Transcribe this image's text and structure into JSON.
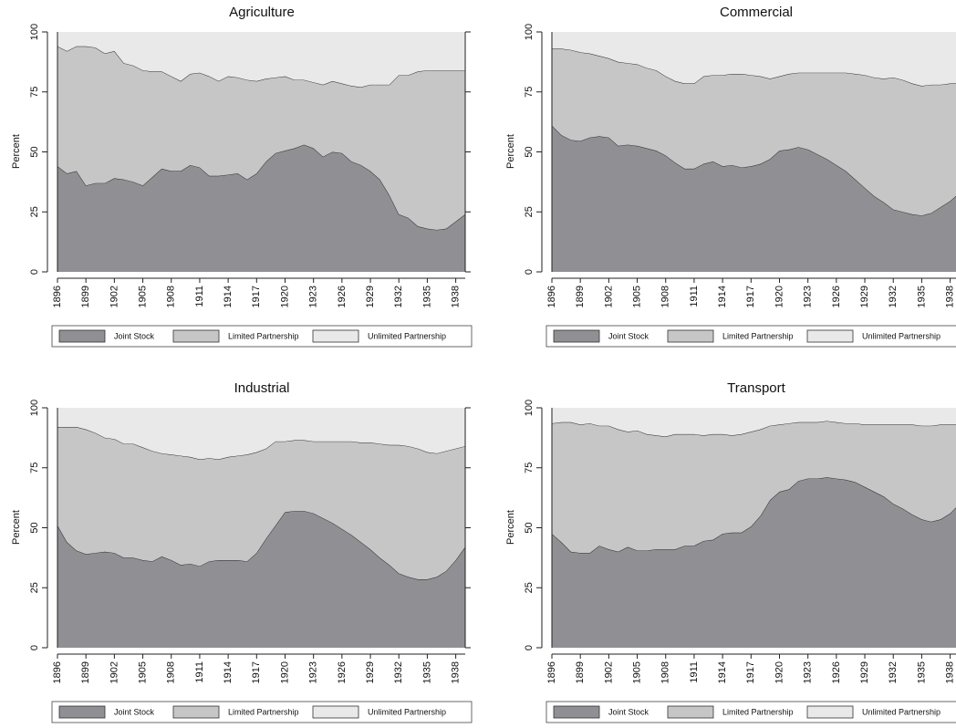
{
  "chart_data": [
    {
      "type": "area",
      "stacked": true,
      "title": "Agriculture",
      "ylabel": "Percent",
      "x": [
        1896,
        1897,
        1898,
        1899,
        1900,
        1901,
        1902,
        1903,
        1904,
        1905,
        1906,
        1907,
        1908,
        1909,
        1910,
        1911,
        1912,
        1913,
        1914,
        1915,
        1916,
        1917,
        1918,
        1919,
        1920,
        1921,
        1922,
        1923,
        1924,
        1925,
        1926,
        1927,
        1928,
        1929,
        1930,
        1931,
        1932,
        1933,
        1934,
        1935,
        1936,
        1937,
        1938,
        1939
      ],
      "xlim": [
        1896,
        1939
      ],
      "xticks": [
        1896,
        1899,
        1902,
        1905,
        1908,
        1911,
        1914,
        1917,
        1920,
        1923,
        1926,
        1929,
        1932,
        1935,
        1938
      ],
      "ylim": [
        0,
        100
      ],
      "yticks": [
        0,
        25,
        50,
        75,
        100
      ],
      "series": [
        {
          "name": "Joint Stock",
          "color": "#909094",
          "values": [
            44,
            41,
            42,
            36,
            37,
            37,
            39,
            38.5,
            37.5,
            36,
            39.5,
            43,
            42,
            42,
            44.5,
            43.5,
            40,
            40,
            40.5,
            41,
            38.5,
            41,
            46,
            49.5,
            50.5,
            51.5,
            53,
            51.5,
            48,
            50,
            49.5,
            46,
            44.5,
            42,
            38.5,
            32,
            24,
            22.5,
            19,
            18,
            17.5,
            18,
            21,
            24
          ]
        },
        {
          "name": "Limited Partnership",
          "color": "#c6c6c6",
          "values": [
            50,
            51,
            52,
            58,
            56.5,
            54,
            53,
            48.5,
            48.5,
            48,
            44,
            40.5,
            39.5,
            37.5,
            38,
            39.5,
            41.5,
            39.5,
            41,
            40,
            41.5,
            38.5,
            34.5,
            31.5,
            31,
            28.5,
            27,
            27.5,
            30,
            29.5,
            29,
            31.5,
            32.5,
            36,
            39.5,
            46,
            58,
            59.5,
            64.5,
            66,
            66.5,
            66,
            63,
            60
          ]
        },
        {
          "name": "Unlimited Partnership",
          "color": "#e9e9e9",
          "values": [
            6,
            8,
            6,
            6,
            6.5,
            9,
            8,
            13,
            14,
            16,
            16.5,
            16.5,
            18.5,
            20.5,
            17.5,
            17,
            18.5,
            20.5,
            18.5,
            19,
            20,
            20.5,
            19.5,
            19,
            18.5,
            20,
            20,
            21,
            22,
            20.5,
            21.5,
            22.5,
            23,
            22,
            22,
            22,
            18,
            18,
            16.5,
            16,
            16,
            16,
            16,
            16
          ]
        }
      ]
    },
    {
      "type": "area",
      "stacked": true,
      "title": "Commercial",
      "ylabel": "Percent",
      "x": [
        1896,
        1897,
        1898,
        1899,
        1900,
        1901,
        1902,
        1903,
        1904,
        1905,
        1906,
        1907,
        1908,
        1909,
        1910,
        1911,
        1912,
        1913,
        1914,
        1915,
        1916,
        1917,
        1918,
        1919,
        1920,
        1921,
        1922,
        1923,
        1924,
        1925,
        1926,
        1927,
        1928,
        1929,
        1930,
        1931,
        1932,
        1933,
        1934,
        1935,
        1936,
        1937,
        1938,
        1939
      ],
      "xlim": [
        1896,
        1939
      ],
      "xticks": [
        1896,
        1899,
        1902,
        1905,
        1908,
        1911,
        1914,
        1917,
        1920,
        1923,
        1926,
        1929,
        1932,
        1935,
        1938
      ],
      "ylim": [
        0,
        100
      ],
      "yticks": [
        0,
        25,
        50,
        75,
        100
      ],
      "series": [
        {
          "name": "Joint Stock",
          "color": "#909094",
          "values": [
            61,
            57,
            55,
            54.5,
            56,
            56.5,
            56,
            52.5,
            53,
            52.5,
            51.5,
            50.5,
            48.5,
            45.5,
            43,
            43,
            45,
            46,
            44,
            44.5,
            43.5,
            44,
            45,
            47,
            50.5,
            51,
            52,
            51,
            49,
            47,
            44.5,
            42,
            38.5,
            35,
            31.5,
            29,
            26,
            25,
            24,
            23.5,
            24.5,
            27,
            29.5,
            33
          ]
        },
        {
          "name": "Limited Partnership",
          "color": "#c6c6c6",
          "values": [
            32,
            36,
            37.5,
            37,
            35,
            33.5,
            33,
            35,
            34,
            34,
            33.5,
            33.5,
            33,
            34,
            35.5,
            35.5,
            36.5,
            36,
            38,
            38,
            39,
            38,
            36.5,
            33.5,
            31,
            31.5,
            31,
            32,
            34,
            36,
            38.5,
            41,
            44,
            47,
            49.5,
            51.5,
            55,
            55,
            54.5,
            54,
            53.5,
            51,
            49,
            45.5
          ]
        },
        {
          "name": "Unlimited Partnership",
          "color": "#e9e9e9",
          "values": [
            7,
            7,
            7.5,
            8.5,
            9,
            10,
            11,
            12.5,
            13,
            13.5,
            15,
            16,
            18.5,
            20.5,
            21.5,
            21.5,
            18.5,
            18,
            18,
            17.5,
            17.5,
            18,
            18.5,
            19.5,
            18.5,
            17.5,
            17,
            17,
            17,
            17,
            17,
            17,
            17.5,
            18,
            19,
            19.5,
            19,
            20,
            21.5,
            22.5,
            22,
            22,
            21.5,
            21.5
          ]
        }
      ]
    },
    {
      "type": "area",
      "stacked": true,
      "title": "Industrial",
      "ylabel": "Percent",
      "x": [
        1896,
        1897,
        1898,
        1899,
        1900,
        1901,
        1902,
        1903,
        1904,
        1905,
        1906,
        1907,
        1908,
        1909,
        1910,
        1911,
        1912,
        1913,
        1914,
        1915,
        1916,
        1917,
        1918,
        1919,
        1920,
        1921,
        1922,
        1923,
        1924,
        1925,
        1926,
        1927,
        1928,
        1929,
        1930,
        1931,
        1932,
        1933,
        1934,
        1935,
        1936,
        1937,
        1938,
        1939
      ],
      "xlim": [
        1896,
        1939
      ],
      "xticks": [
        1896,
        1899,
        1902,
        1905,
        1908,
        1911,
        1914,
        1917,
        1920,
        1923,
        1926,
        1929,
        1932,
        1935,
        1938
      ],
      "ylim": [
        0,
        100
      ],
      "yticks": [
        0,
        25,
        50,
        75,
        100
      ],
      "series": [
        {
          "name": "Joint Stock",
          "color": "#909094",
          "values": [
            51,
            44,
            40.5,
            39,
            39.5,
            40,
            39.5,
            37.5,
            37.5,
            36.5,
            36,
            38,
            36.5,
            34.5,
            35,
            34,
            36,
            36.5,
            36.5,
            36.5,
            36,
            39.5,
            45.5,
            51,
            56.5,
            57,
            57,
            56,
            54,
            52,
            49.5,
            47,
            44,
            41,
            37.5,
            34.5,
            31,
            29.5,
            28.5,
            28.5,
            29.5,
            32,
            36.5,
            42
          ]
        },
        {
          "name": "Limited Partnership",
          "color": "#c6c6c6",
          "values": [
            41,
            48,
            51.5,
            52,
            50,
            47.5,
            47.5,
            47.5,
            47.5,
            47,
            46,
            43,
            44,
            45.5,
            44.5,
            44.5,
            43,
            42,
            43,
            43.5,
            44.5,
            42,
            37.5,
            35,
            29.5,
            29.5,
            29.5,
            30,
            32,
            34,
            36.5,
            39,
            41.5,
            44.5,
            47.5,
            50,
            53.5,
            54.5,
            54.5,
            53,
            51.5,
            50,
            46.5,
            42
          ]
        },
        {
          "name": "Unlimited Partnership",
          "color": "#e9e9e9",
          "values": [
            8,
            8,
            8,
            9,
            10.5,
            12.5,
            13,
            15,
            15,
            16.5,
            18,
            19,
            19.5,
            20,
            20.5,
            21.5,
            21,
            21.5,
            20.5,
            20,
            19.5,
            18.5,
            17,
            14,
            14,
            13.5,
            13.5,
            14,
            14,
            14,
            14,
            14,
            14.5,
            14.5,
            15,
            15.5,
            15.5,
            16,
            17,
            18.5,
            19,
            18,
            17,
            16
          ]
        }
      ]
    },
    {
      "type": "area",
      "stacked": true,
      "title": "Transport",
      "ylabel": "Percent",
      "x": [
        1896,
        1897,
        1898,
        1899,
        1900,
        1901,
        1902,
        1903,
        1904,
        1905,
        1906,
        1907,
        1908,
        1909,
        1910,
        1911,
        1912,
        1913,
        1914,
        1915,
        1916,
        1917,
        1918,
        1919,
        1920,
        1921,
        1922,
        1923,
        1924,
        1925,
        1926,
        1927,
        1928,
        1929,
        1930,
        1931,
        1932,
        1933,
        1934,
        1935,
        1936,
        1937,
        1938,
        1939
      ],
      "xlim": [
        1896,
        1939
      ],
      "xticks": [
        1896,
        1899,
        1902,
        1905,
        1908,
        1911,
        1914,
        1917,
        1920,
        1923,
        1926,
        1929,
        1932,
        1935,
        1938
      ],
      "ylim": [
        0,
        100
      ],
      "yticks": [
        0,
        25,
        50,
        75,
        100
      ],
      "series": [
        {
          "name": "Joint Stock",
          "color": "#909094",
          "values": [
            47.5,
            44,
            40,
            39.5,
            39.5,
            42.5,
            41,
            40,
            42,
            40.5,
            40.5,
            41,
            41,
            41,
            42.5,
            42.5,
            44.5,
            45,
            47.5,
            48,
            48,
            50.5,
            55,
            61.5,
            65,
            66,
            69.5,
            70.5,
            70.5,
            71,
            70.5,
            70,
            69,
            67,
            65,
            63,
            60,
            58,
            55.5,
            53.5,
            52.5,
            53.5,
            56,
            60
          ]
        },
        {
          "name": "Limited Partnership",
          "color": "#c6c6c6",
          "values": [
            46,
            50,
            54,
            53.5,
            54,
            50,
            51.5,
            51,
            48,
            50,
            48.5,
            47.5,
            47,
            48,
            46.5,
            46.5,
            44,
            44,
            41.5,
            40.5,
            41,
            39.5,
            36,
            31,
            28,
            27.5,
            24.5,
            23.5,
            23.5,
            23.5,
            23.5,
            23.5,
            24.5,
            26,
            28,
            30,
            33,
            35,
            37.5,
            39,
            40,
            39.5,
            37,
            33
          ]
        },
        {
          "name": "Unlimited Partnership",
          "color": "#e9e9e9",
          "values": [
            6.5,
            6,
            6,
            7,
            6.5,
            7.5,
            7.5,
            9,
            10,
            9.5,
            11,
            11.5,
            12,
            11,
            11,
            11,
            11.5,
            11,
            11,
            11.5,
            11,
            10,
            9,
            7.5,
            7,
            6.5,
            6,
            6,
            6,
            5.5,
            6,
            6.5,
            6.5,
            7,
            7,
            7,
            7,
            7,
            7,
            7.5,
            7.5,
            7,
            7,
            7
          ]
        }
      ]
    }
  ]
}
